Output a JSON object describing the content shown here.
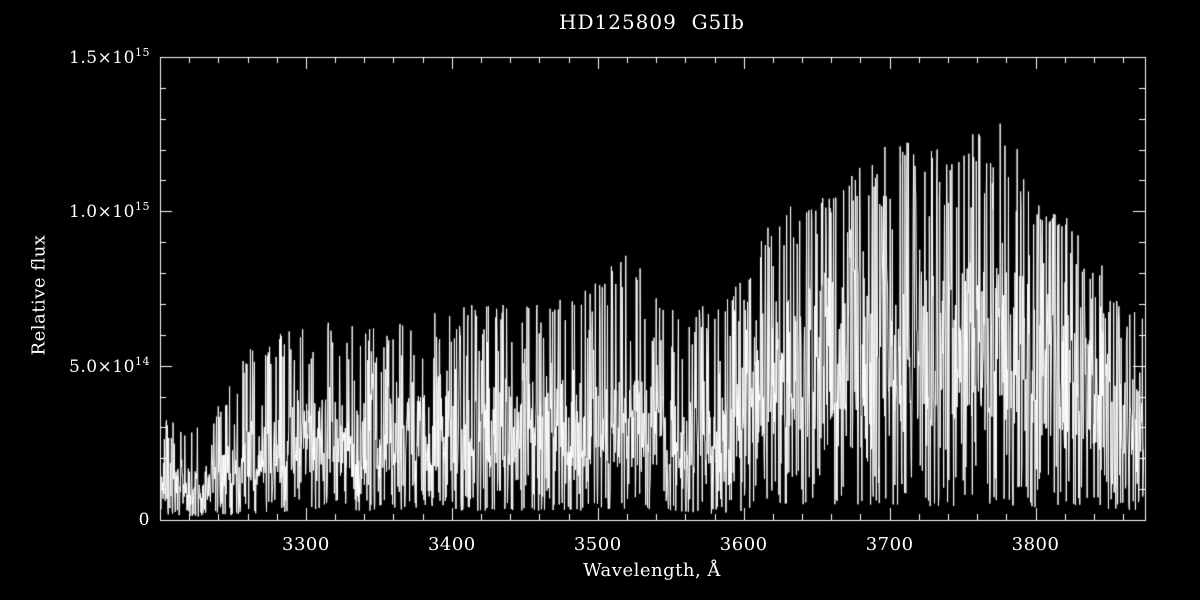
{
  "window": {
    "background": "#000000",
    "foreground": "#ffffff"
  },
  "chart": {
    "title": "HD125809  G5Ib",
    "xlabel": "Wavelength, Å",
    "ylabel": "Relative flux"
  },
  "chart_data": {
    "type": "line",
    "title": "HD125809  G5Ib",
    "xlabel": "Wavelength, Å",
    "ylabel": "Relative flux",
    "xlim": [
      3200,
      3875
    ],
    "ylim": [
      0,
      1500000000000000.0
    ],
    "x_major_ticks": [
      3300,
      3400,
      3500,
      3600,
      3700,
      3800
    ],
    "x_minor_interval": 20,
    "y_major_ticks": [
      0,
      500000000000000.0,
      1000000000000000.0,
      1500000000000000.0
    ],
    "y_tick_labels": [
      "0",
      "5.0×10^14",
      "1.0×10^15",
      "1.5×10^15"
    ],
    "y_minor_interval": 100000000000000.0,
    "grid": false,
    "legend": "none",
    "line_color": "#ffffff",
    "background": "#000000",
    "series": [
      {
        "name": "HD125809 spectrum",
        "description": "Very noisy near-UV stellar spectrum; flux rises from ~1.5e14 around 3200 Å to a plateau ~3e14 between 3260–3580 Å, dips near 3580 Å, then jumps to ~6–7e14 between 3600–3800 Å with deep absorption lines reaching near zero; tallest emission-like peaks ~1.28e15 near 3710 Å and ~1.35e15 near 3780 Å; declines after 3800 Å.",
        "envelope": {
          "wavelength": [
            3200,
            3230,
            3260,
            3300,
            3350,
            3400,
            3450,
            3500,
            3520,
            3550,
            3580,
            3600,
            3620,
            3650,
            3680,
            3710,
            3740,
            3780,
            3800,
            3830,
            3860,
            3875
          ],
          "mean_flux": [
            150000000000000.0,
            130000000000000.0,
            250000000000000.0,
            300000000000000.0,
            300000000000000.0,
            320000000000000.0,
            350000000000000.0,
            350000000000000.0,
            360000000000000.0,
            320000000000000.0,
            280000000000000.0,
            400000000000000.0,
            550000000000000.0,
            600000000000000.0,
            630000000000000.0,
            650000000000000.0,
            620000000000000.0,
            700000000000000.0,
            550000000000000.0,
            480000000000000.0,
            380000000000000.0,
            330000000000000.0
          ],
          "peak_flux": [
            350000000000000.0,
            300000000000000.0,
            550000000000000.0,
            650000000000000.0,
            620000000000000.0,
            700000000000000.0,
            700000000000000.0,
            780000000000000.0,
            880000000000000.0,
            680000000000000.0,
            720000000000000.0,
            780000000000000.0,
            1000000000000000.0,
            1050000000000000.0,
            1150000000000000.0,
            1280000000000000.0,
            1180000000000000.0,
            1350000000000000.0,
            1050000000000000.0,
            950000000000000.0,
            720000000000000.0,
            680000000000000.0
          ],
          "min_flux": [
            20000000000000.0,
            10000000000000.0,
            20000000000000.0,
            30000000000000.0,
            30000000000000.0,
            30000000000000.0,
            30000000000000.0,
            30000000000000.0,
            30000000000000.0,
            30000000000000.0,
            20000000000000.0,
            30000000000000.0,
            50000000000000.0,
            50000000000000.0,
            50000000000000.0,
            50000000000000.0,
            40000000000000.0,
            50000000000000.0,
            40000000000000.0,
            40000000000000.0,
            30000000000000.0,
            30000000000000.0
          ]
        }
      }
    ]
  }
}
